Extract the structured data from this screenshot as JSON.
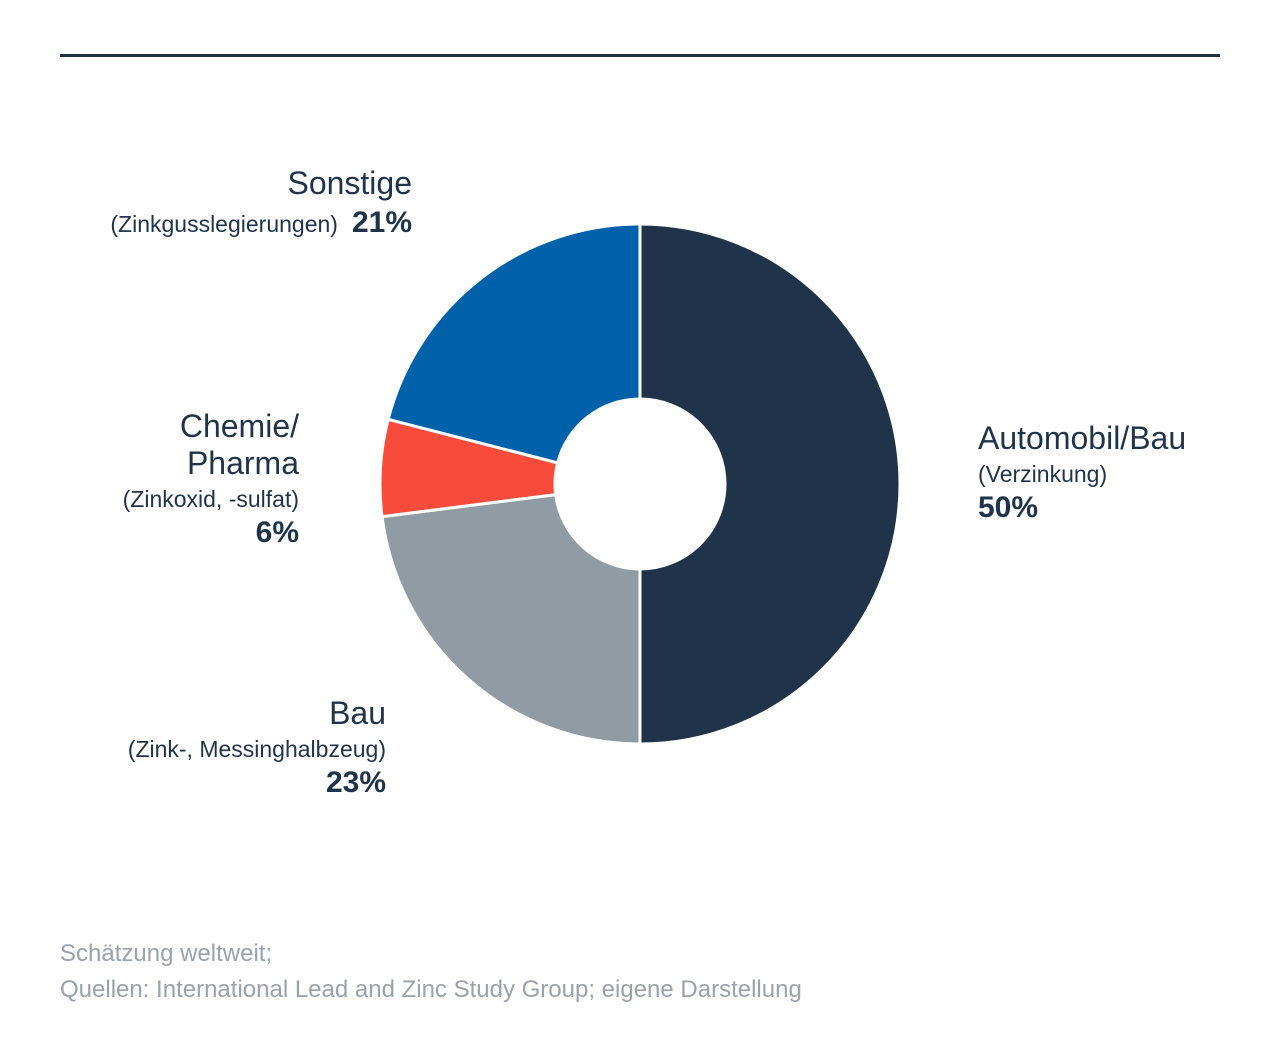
{
  "colors": {
    "automobil_bau": "#1f334a",
    "bau": "#909ba3",
    "chemie_pharma": "#f94b3b",
    "sonstige": "#0061ab",
    "rule": "#1f334a",
    "footnote": "#9aa2aa"
  },
  "chart_data": {
    "type": "pie",
    "donut": true,
    "unit": "%",
    "slices": [
      {
        "name": "Automobil/Bau",
        "detail": "(Verzinkung)",
        "value": 50,
        "label": "50%"
      },
      {
        "name": "Bau",
        "detail": "(Zink-, Messinghalbzeug)",
        "value": 23,
        "label": "23%"
      },
      {
        "name": "Chemie/ Pharma",
        "name_line1": "Chemie/",
        "name_line2": "Pharma",
        "detail": "(Zinkoxid, -sulfat)",
        "value": 6,
        "label": "6%"
      },
      {
        "name": "Sonstige",
        "detail": "(Zinkgusslegierungen)",
        "value": 21,
        "label": "21%"
      }
    ]
  },
  "footnote": {
    "line1": "Schätzung weltweit;",
    "line2": "Quellen: International Lead and Zinc Study Group; eigene Darstellung"
  }
}
